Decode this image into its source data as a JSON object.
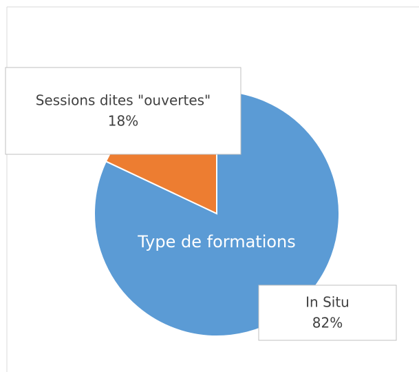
{
  "chart_data": {
    "type": "pie",
    "title": "Type de formations",
    "categories": [
      "In Situ",
      "Sessions dites \"ouvertes\""
    ],
    "values": [
      82,
      18
    ],
    "value_labels": [
      "82%",
      "18%"
    ],
    "colors": [
      "#5b9bd5",
      "#ed7d31"
    ]
  }
}
